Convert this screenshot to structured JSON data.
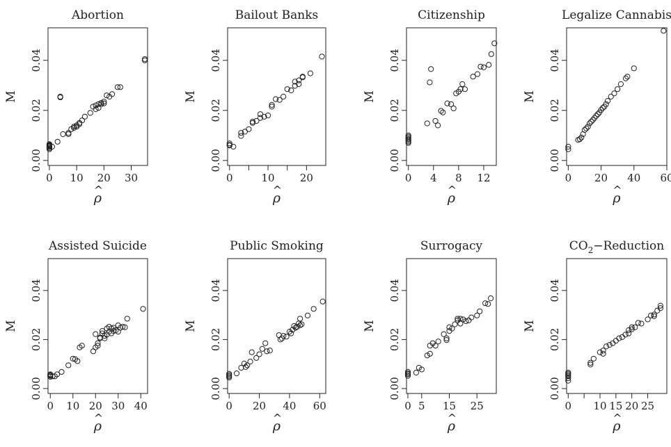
{
  "figure": {
    "y_axis_label": "M",
    "x_axis_label": "ρ",
    "x_axis_hat": "^"
  },
  "colors": {
    "points": "#222222",
    "axes": "#222222",
    "background": "#ffffff"
  },
  "chart_data": [
    {
      "type": "scatter",
      "title": "Abortion",
      "xlabel": "ρ̂",
      "ylabel": "M",
      "xlim": [
        -0.5,
        36
      ],
      "ylim": [
        -0.002,
        0.053
      ],
      "xticks": [
        0,
        10,
        20,
        30
      ],
      "yticks": [
        0.0,
        0.02,
        0.04
      ],
      "ytick_labels": [
        "0.00",
        "0.02",
        "0.04"
      ],
      "x": [
        0,
        0,
        0,
        0,
        0,
        0,
        0,
        0,
        1,
        3,
        4,
        4,
        5,
        7,
        7,
        8,
        9,
        9,
        10,
        10,
        11,
        11,
        12,
        13,
        15,
        16,
        17,
        17,
        18,
        18,
        19,
        19,
        20,
        20,
        21,
        22,
        23,
        25,
        26,
        35,
        35
      ],
      "y": [
        0.0045,
        0.005,
        0.0055,
        0.006,
        0.0065,
        0.005,
        0.0058,
        0.0062,
        0.0055,
        0.0075,
        0.0255,
        0.0252,
        0.0105,
        0.011,
        0.0105,
        0.0125,
        0.013,
        0.0135,
        0.0135,
        0.014,
        0.0145,
        0.015,
        0.016,
        0.0175,
        0.019,
        0.0215,
        0.0205,
        0.022,
        0.021,
        0.0225,
        0.0225,
        0.023,
        0.0235,
        0.0228,
        0.026,
        0.0255,
        0.0265,
        0.0293,
        0.0293,
        0.04,
        0.0405
      ]
    },
    {
      "type": "scatter",
      "title": "Bailout Banks",
      "xlabel": "ρ̂",
      "ylabel": "M",
      "xlim": [
        -0.5,
        25
      ],
      "ylim": [
        -0.002,
        0.053
      ],
      "xticks": [
        0,
        5,
        10,
        15,
        20
      ],
      "xtick_labels": [
        "0",
        "",
        "10",
        "",
        "20"
      ],
      "yticks": [
        0.0,
        0.02,
        0.04
      ],
      "ytick_labels": [
        "0.00",
        "0.02",
        "0.04"
      ],
      "x": [
        0,
        0,
        0,
        1,
        3,
        3,
        4,
        5,
        6,
        6,
        7,
        8,
        8,
        9,
        10,
        11,
        11,
        12,
        13,
        14,
        15,
        16,
        17,
        17,
        18,
        18,
        19,
        19,
        21,
        24
      ],
      "y": [
        0.0062,
        0.0068,
        0.006,
        0.0055,
        0.0098,
        0.011,
        0.0115,
        0.0125,
        0.015,
        0.0155,
        0.0158,
        0.017,
        0.0185,
        0.0175,
        0.018,
        0.0222,
        0.0215,
        0.0245,
        0.0242,
        0.0255,
        0.0285,
        0.028,
        0.0298,
        0.0315,
        0.032,
        0.0305,
        0.0335,
        0.0332,
        0.0348,
        0.0415
      ]
    },
    {
      "type": "scatter",
      "title": "Citizenship",
      "xlabel": "ρ̂",
      "ylabel": "M",
      "xlim": [
        -0.3,
        14
      ],
      "ylim": [
        -0.002,
        0.053
      ],
      "xticks": [
        0,
        4,
        8,
        12
      ],
      "yticks": [
        0.0,
        0.02,
        0.04
      ],
      "ytick_labels": [
        "0.00",
        "0.02",
        "0.04"
      ],
      "x": [
        0,
        0,
        0,
        0,
        0,
        0,
        0,
        3,
        3.4,
        3.6,
        4.3,
        4.7,
        5.2,
        5.5,
        6.2,
        6.8,
        7.2,
        7.6,
        8.0,
        8.3,
        8.6,
        9.0,
        10.3,
        11.0,
        11.5,
        12.0,
        12.8,
        13.2,
        13.7
      ],
      "y": [
        0.007,
        0.0075,
        0.008,
        0.0085,
        0.009,
        0.0095,
        0.01,
        0.0148,
        0.0312,
        0.0365,
        0.0158,
        0.014,
        0.0198,
        0.0192,
        0.0228,
        0.0225,
        0.0208,
        0.0268,
        0.0275,
        0.0285,
        0.0305,
        0.0285,
        0.0335,
        0.0345,
        0.0375,
        0.0372,
        0.0382,
        0.0425,
        0.0468
      ]
    },
    {
      "type": "scatter",
      "title": "Legalize Cannabis",
      "xlabel": "ρ̂",
      "ylabel": "M",
      "xlim": [
        -1,
        60
      ],
      "ylim": [
        -0.002,
        0.053
      ],
      "xticks": [
        0,
        20,
        40,
        60
      ],
      "yticks": [
        0.0,
        0.02,
        0.04
      ],
      "ytick_labels": [
        "0.00",
        "0.02",
        "0.04"
      ],
      "x": [
        0,
        0,
        6,
        7,
        8,
        9,
        10,
        11,
        12,
        13,
        14,
        15,
        16,
        17,
        18,
        19,
        20,
        21,
        22,
        23,
        24,
        26,
        28,
        30,
        32,
        35,
        36,
        40,
        58
      ],
      "y": [
        0.0045,
        0.0055,
        0.0082,
        0.0085,
        0.0092,
        0.0105,
        0.0122,
        0.0128,
        0.0135,
        0.0148,
        0.0155,
        0.0162,
        0.017,
        0.0178,
        0.0185,
        0.0192,
        0.0202,
        0.021,
        0.0215,
        0.0225,
        0.0238,
        0.0255,
        0.0268,
        0.0285,
        0.0305,
        0.0328,
        0.0335,
        0.0368,
        0.0518
      ]
    },
    {
      "type": "scatter",
      "title": "Assisted Suicide",
      "xlabel": "ρ̂",
      "ylabel": "M",
      "xlim": [
        -1,
        43
      ],
      "ylim": [
        -0.002,
        0.053
      ],
      "xticks": [
        0,
        10,
        20,
        30,
        40
      ],
      "yticks": [
        0.0,
        0.02,
        0.04
      ],
      "ytick_labels": [
        "0.00",
        "0.02",
        "0.04"
      ],
      "x": [
        0,
        0,
        0,
        0,
        1,
        2,
        3,
        5,
        8,
        10,
        11,
        12,
        13,
        14,
        19,
        20,
        20,
        21,
        21,
        22,
        22,
        23,
        23,
        24,
        24,
        25,
        25,
        26,
        26,
        27,
        27,
        28,
        28,
        29,
        30,
        30,
        31,
        32,
        33,
        34,
        41
      ],
      "y": [
        0.0048,
        0.0052,
        0.0055,
        0.0058,
        0.005,
        0.005,
        0.0058,
        0.0068,
        0.0095,
        0.0122,
        0.012,
        0.0112,
        0.0168,
        0.0175,
        0.0152,
        0.0168,
        0.0222,
        0.0185,
        0.0175,
        0.0205,
        0.0208,
        0.0225,
        0.0235,
        0.0215,
        0.0205,
        0.022,
        0.0245,
        0.0252,
        0.0232,
        0.0245,
        0.0225,
        0.0235,
        0.0248,
        0.0238,
        0.0258,
        0.0232,
        0.0248,
        0.0252,
        0.025,
        0.0285,
        0.0325
      ]
    },
    {
      "type": "scatter",
      "title": "Public Smoking",
      "xlabel": "ρ̂",
      "ylabel": "M",
      "xlim": [
        -1,
        64
      ],
      "ylim": [
        -0.002,
        0.053
      ],
      "xticks": [
        0,
        20,
        40,
        60
      ],
      "yticks": [
        0.0,
        0.02,
        0.04
      ],
      "ytick_labels": [
        "0.00",
        "0.02",
        "0.04"
      ],
      "x": [
        0,
        0,
        0,
        0,
        5,
        8,
        10,
        11,
        12,
        14,
        15,
        18,
        20,
        22,
        24,
        25,
        27,
        33,
        34,
        35,
        36,
        38,
        40,
        41,
        42,
        43,
        44,
        45,
        46,
        47,
        47,
        48,
        52,
        56,
        62
      ],
      "y": [
        0.0045,
        0.005,
        0.0055,
        0.006,
        0.0062,
        0.0085,
        0.0102,
        0.0088,
        0.0095,
        0.011,
        0.0148,
        0.0125,
        0.014,
        0.0162,
        0.0185,
        0.0152,
        0.0155,
        0.0218,
        0.02,
        0.0205,
        0.0215,
        0.0212,
        0.0232,
        0.0225,
        0.024,
        0.0255,
        0.0248,
        0.0252,
        0.0265,
        0.0285,
        0.0258,
        0.0262,
        0.0298,
        0.0325,
        0.0355
      ]
    },
    {
      "type": "scatter",
      "title": "Surrogacy",
      "xlabel": "ρ̂",
      "ylabel": "M",
      "xlim": [
        -0.5,
        32
      ],
      "ylim": [
        -0.002,
        0.053
      ],
      "xticks": [
        0,
        5,
        15,
        25
      ],
      "yticks": [
        0.0,
        0.02,
        0.04
      ],
      "ytick_labels": [
        "0.00",
        "0.02",
        "0.04"
      ],
      "x": [
        0,
        0,
        0,
        0,
        3,
        4,
        5,
        7,
        8,
        8,
        9,
        10,
        11,
        13,
        14,
        14,
        15,
        15,
        16,
        17,
        18,
        18,
        19,
        19,
        20,
        21,
        22,
        23,
        25,
        26,
        28,
        29,
        30
      ],
      "y": [
        0.0052,
        0.0058,
        0.0062,
        0.0068,
        0.0065,
        0.0085,
        0.0078,
        0.0135,
        0.0142,
        0.0175,
        0.0185,
        0.0175,
        0.0192,
        0.0222,
        0.0198,
        0.0205,
        0.0235,
        0.025,
        0.0245,
        0.0262,
        0.0278,
        0.0285,
        0.0265,
        0.0285,
        0.0282,
        0.0275,
        0.0278,
        0.029,
        0.0298,
        0.0315,
        0.0348,
        0.0345,
        0.0368
      ]
    },
    {
      "type": "scatter",
      "title": "CO2−Reduction",
      "title_main": "CO",
      "title_sub": "2",
      "title_rest": "−Reduction",
      "xlabel": "ρ̂",
      "ylabel": "M",
      "xlim": [
        -0.5,
        31
      ],
      "ylim": [
        -0.002,
        0.053
      ],
      "xticks": [
        0,
        5,
        10,
        15,
        20,
        25
      ],
      "xtick_labels": [
        "0",
        "",
        "10",
        "15",
        "20",
        "25"
      ],
      "yticks": [
        0.0,
        0.02,
        0.04
      ],
      "ytick_labels": [
        "0.00",
        "0.02",
        "0.04"
      ],
      "x": [
        0,
        0,
        0,
        0,
        0,
        0,
        7,
        7,
        8,
        10,
        11,
        11,
        12,
        13,
        14,
        15,
        16,
        17,
        18,
        19,
        19,
        20,
        20,
        21,
        22,
        23,
        25,
        26,
        27,
        27,
        28,
        29,
        29
      ],
      "y": [
        0.0032,
        0.0042,
        0.005,
        0.0055,
        0.006,
        0.0065,
        0.0098,
        0.0105,
        0.0122,
        0.0148,
        0.0142,
        0.0155,
        0.0172,
        0.0178,
        0.0185,
        0.0195,
        0.0205,
        0.021,
        0.022,
        0.0225,
        0.0238,
        0.0242,
        0.025,
        0.025,
        0.0268,
        0.0265,
        0.0282,
        0.0298,
        0.0302,
        0.0295,
        0.0318,
        0.0328,
        0.0338
      ]
    }
  ]
}
